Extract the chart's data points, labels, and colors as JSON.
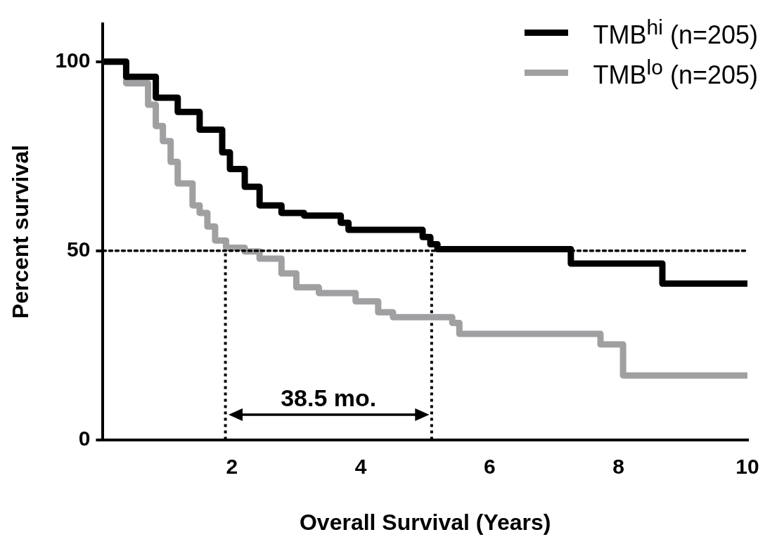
{
  "chart_data": {
    "type": "step",
    "xlabel": "Overall Survival (Years)",
    "ylabel": "Percent survival",
    "xlim": [
      0,
      10
    ],
    "xticks": [
      2,
      4,
      6,
      8,
      10
    ],
    "ylim": [
      0,
      110
    ],
    "yticks": [
      0,
      50,
      100
    ],
    "grid": false,
    "legend": "top right",
    "marker": "none",
    "series": [
      {
        "name": "TMB$^{hi}$ (n=205)",
        "color": "#000000",
        "x": [
          0,
          0.36,
          0.82,
          1.16,
          1.5,
          1.85,
          1.97,
          2.2,
          2.43,
          2.77,
          3.12,
          3.69,
          3.81,
          4.96,
          5.08,
          5.19,
          7.26,
          8.68,
          10
        ],
        "values": [
          100,
          100,
          96,
          90.5,
          86.7,
          82,
          76,
          71.6,
          66.9,
          62,
          60,
          59.3,
          57.4,
          55.5,
          53.6,
          51.7,
          50.4,
          46.6,
          41.3
        ]
      },
      {
        "name": "TMB$^{lo}$ (n=205)",
        "color": "#a0a0a2",
        "x": [
          0,
          0.36,
          0.7,
          0.82,
          0.93,
          1.05,
          1.16,
          1.39,
          1.5,
          1.62,
          1.74,
          1.91,
          2.2,
          2.43,
          2.77,
          3.0,
          3.35,
          3.92,
          4.27,
          4.5,
          5.42,
          5.53,
          7.72,
          8.07,
          10
        ],
        "values": [
          100,
          100,
          94.3,
          88.6,
          83,
          79,
          73.5,
          67.8,
          62,
          60,
          56.4,
          52.7,
          50.8,
          49.8,
          47.9,
          44,
          40.3,
          38.8,
          36.6,
          33.7,
          32.4,
          30.9,
          28,
          25.2,
          17
        ]
      },
      {
        "type": "line",
        "color": "#000000",
        "line_style": "dotted",
        "x": [
          1.9,
          1.9
        ],
        "values": [
          0,
          50
        ]
      },
      {
        "type": "line",
        "color": "#000000",
        "line_style": "dotted",
        "x": [
          5.1,
          5.1
        ],
        "values": [
          0,
          50
        ]
      }
    ],
    "ref_lines": [
      {
        "axis": "y",
        "value": 50,
        "color": "#000000",
        "line_style": "dotted"
      }
    ],
    "annotations": [
      "38.5 mo."
    ]
  }
}
